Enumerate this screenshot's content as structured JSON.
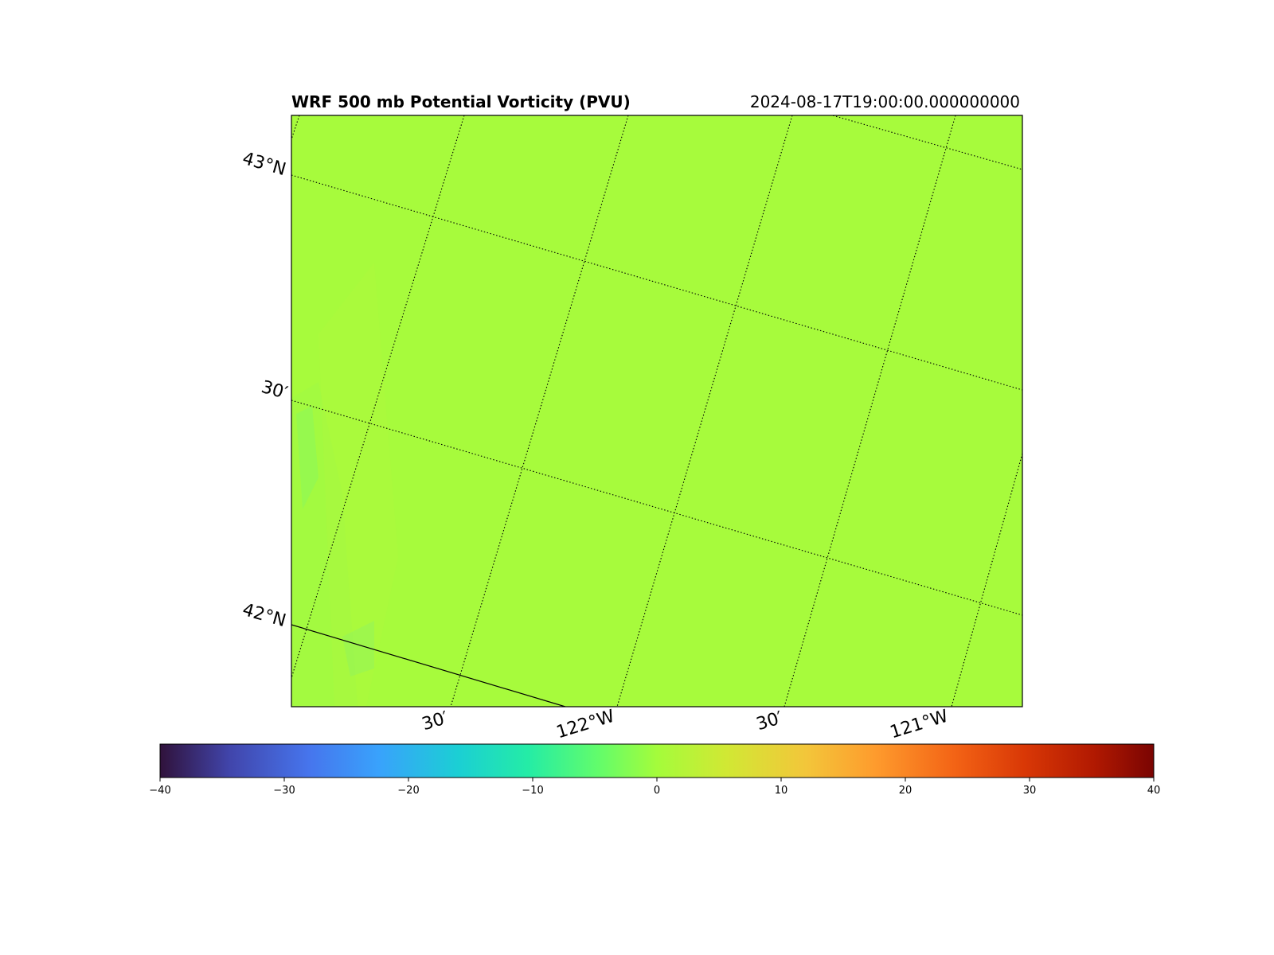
{
  "title": {
    "left": "WRF 500 mb Potential Vorticity (PVU)",
    "right": "2024-08-17T19:00:00.000000000"
  },
  "map": {
    "field_color": "#a7fb3c",
    "border_color": "#000000",
    "lat_labels": [
      "43°N",
      "30′",
      "42°N"
    ],
    "lon_labels": [
      "30′",
      "122°W",
      "30′",
      "121°W"
    ]
  },
  "colorbar": {
    "colormap": "turbo",
    "range": [
      -40,
      40
    ],
    "ticks": [
      "−40",
      "−30",
      "−20",
      "−10",
      "0",
      "10",
      "20",
      "30",
      "40"
    ],
    "tick_values": [
      -40,
      -30,
      -20,
      -10,
      0,
      10,
      20,
      30,
      40
    ]
  }
}
